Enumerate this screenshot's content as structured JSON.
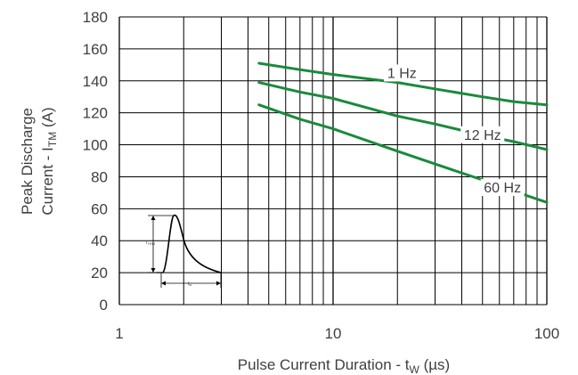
{
  "chart_data": {
    "type": "line",
    "xscale": "log",
    "xlim": [
      1,
      100
    ],
    "ylim": [
      0,
      180
    ],
    "grid": true,
    "x_ticks": [
      "1",
      "10",
      "100"
    ],
    "y_ticks": [
      "0",
      "20",
      "40",
      "60",
      "80",
      "100",
      "120",
      "140",
      "160",
      "180"
    ],
    "xlabel": {
      "main": "Pulse Current Duration - t",
      "sub": "W",
      "tail": " (µs)"
    },
    "ylabel": {
      "line1": "Peak Discharge",
      "line2_main": "Current - I",
      "line2_sub": "TM",
      "line2_tail": " (A)"
    },
    "series": [
      {
        "name": "1 Hz",
        "color": "#1a8a3c",
        "x": [
          4.5,
          7,
          10,
          20,
          30,
          50,
          70,
          100
        ],
        "y": [
          151,
          147,
          144,
          139,
          135,
          130,
          127,
          125
        ]
      },
      {
        "name": "12 Hz",
        "color": "#1a8a3c",
        "x": [
          4.5,
          7,
          10,
          20,
          30,
          50,
          70,
          100
        ],
        "y": [
          139,
          133,
          129,
          118,
          113,
          106,
          102,
          97
        ]
      },
      {
        "name": "60 Hz",
        "color": "#1a8a3c",
        "x": [
          4.5,
          7,
          10,
          20,
          30,
          50,
          70,
          100
        ],
        "y": [
          125,
          116,
          110,
          96,
          88,
          78,
          71,
          64
        ]
      }
    ],
    "inset": {
      "peak_label": "I",
      "peak_sub": "TRM",
      "width_label": "t",
      "width_sub": "w"
    }
  }
}
